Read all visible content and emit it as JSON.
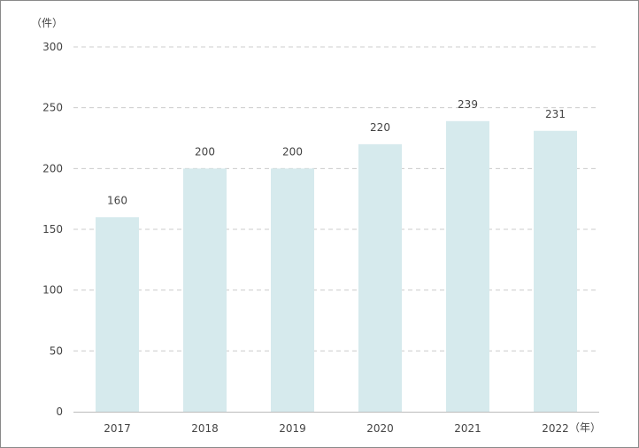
{
  "chart_data": {
    "type": "bar",
    "categories": [
      "2017",
      "2018",
      "2019",
      "2020",
      "2021",
      "2022"
    ],
    "values": [
      160,
      200,
      200,
      220,
      239,
      231
    ],
    "ylim": [
      0,
      300
    ],
    "yticks": [
      0,
      50,
      100,
      150,
      200,
      250,
      300
    ],
    "y_unit": "（件）",
    "x_unit": "（年）",
    "grid": true,
    "colors": {
      "bar": "#d6eaed",
      "grid": "#cccccc",
      "axis": "#bbbbbb"
    }
  }
}
